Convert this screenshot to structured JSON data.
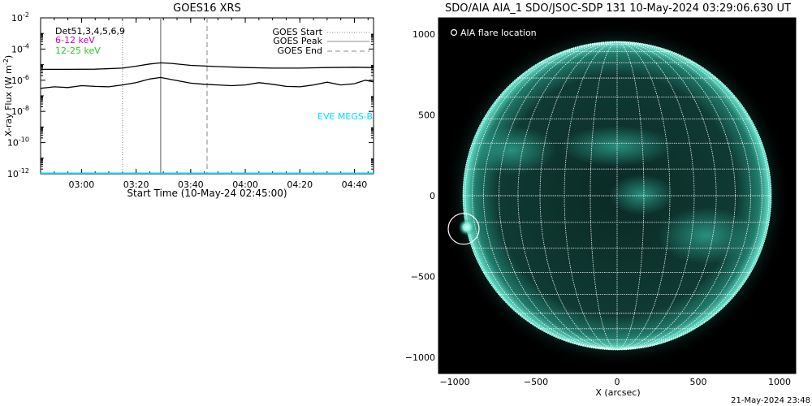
{
  "footer_timestamp": "21-May-2024 23:48",
  "chart_data": [
    {
      "type": "line",
      "title": "GOES16 XRS",
      "xlabel": "Start Time (10-May-24 02:45:00)",
      "ylabel_main": "X-ray Flux (W m",
      "ylabel_sup": "-2",
      "ylabel_close": ")",
      "yscale": "log",
      "ylim": [
        1e-12,
        0.01
      ],
      "xlim": [
        "02:45",
        "04:47"
      ],
      "y_ticks": [
        {
          "base": "10",
          "exp": "-12",
          "value": -12
        },
        {
          "base": "10",
          "exp": "-10",
          "value": -10
        },
        {
          "base": "10",
          "exp": "-8",
          "value": -8
        },
        {
          "base": "10",
          "exp": "-6",
          "value": -6
        },
        {
          "base": "10",
          "exp": "-4",
          "value": -4
        },
        {
          "base": "10",
          "exp": "-2",
          "value": -2
        }
      ],
      "x_ticks": [
        {
          "label": "03:00",
          "time": "03:00"
        },
        {
          "label": "03:20",
          "time": "03:20"
        },
        {
          "label": "03:40",
          "time": "03:40"
        },
        {
          "label": "04:00",
          "time": "04:00"
        },
        {
          "label": "04:20",
          "time": "04:20"
        },
        {
          "label": "04:40",
          "time": "04:40"
        }
      ],
      "legend_left": [
        {
          "label": "Det51,3,4,5,6,9",
          "color": "#000000"
        },
        {
          "label": "6-12 keV",
          "color": "#cc00cc"
        },
        {
          "label": "12-25 keV",
          "color": "#22cc22"
        }
      ],
      "legend_right": [
        {
          "label": "GOES Start",
          "style": "dotted",
          "time": "03:15"
        },
        {
          "label": "GOES Peak",
          "style": "solid",
          "time": "03:29"
        },
        {
          "label": "GOES End",
          "style": "dashed",
          "time": "03:46"
        }
      ],
      "eve_label": "EVE MEGS-B",
      "eve_color": "#00d8ff",
      "series": [
        {
          "name": "long",
          "color": "#000000",
          "points": [
            [
              "02:45",
              5e-06
            ],
            [
              "02:55",
              5e-06
            ],
            [
              "03:05",
              5.1e-06
            ],
            [
              "03:15",
              6e-06
            ],
            [
              "03:20",
              8e-06
            ],
            [
              "03:25",
              1.1e-05
            ],
            [
              "03:29",
              1.3e-05
            ],
            [
              "03:33",
              1.2e-05
            ],
            [
              "03:40",
              9e-06
            ],
            [
              "03:50",
              7.5e-06
            ],
            [
              "04:00",
              6.5e-06
            ],
            [
              "04:10",
              6e-06
            ],
            [
              "04:20",
              6e-06
            ],
            [
              "04:30",
              6.5e-06
            ],
            [
              "04:40",
              6.8e-06
            ],
            [
              "04:47",
              6.5e-06
            ]
          ]
        },
        {
          "name": "short",
          "color": "#000000",
          "points": [
            [
              "02:45",
              3e-07
            ],
            [
              "02:50",
              3.8e-07
            ],
            [
              "02:55",
              3.4e-07
            ],
            [
              "03:00",
              4.5e-07
            ],
            [
              "03:05",
              4e-07
            ],
            [
              "03:10",
              3.8e-07
            ],
            [
              "03:15",
              5e-07
            ],
            [
              "03:20",
              7e-07
            ],
            [
              "03:25",
              1.2e-06
            ],
            [
              "03:29",
              1.5e-06
            ],
            [
              "03:33",
              1.1e-06
            ],
            [
              "03:40",
              6.5e-07
            ],
            [
              "03:45",
              5.5e-07
            ],
            [
              "03:50",
              5e-07
            ],
            [
              "03:55",
              4.5e-07
            ],
            [
              "04:00",
              5e-07
            ],
            [
              "04:05",
              7e-07
            ],
            [
              "04:10",
              5.5e-07
            ],
            [
              "04:15",
              4e-07
            ],
            [
              "04:20",
              3.8e-07
            ],
            [
              "04:25",
              5e-07
            ],
            [
              "04:30",
              7.5e-07
            ],
            [
              "04:35",
              5e-07
            ],
            [
              "04:40",
              6e-07
            ],
            [
              "04:44",
              1e-06
            ],
            [
              "04:47",
              8e-07
            ]
          ]
        },
        {
          "name": "EVE MEGS-B",
          "color": "#00d8ff",
          "points": [
            [
              "02:45",
              1e-12
            ],
            [
              "04:47",
              1e-12
            ]
          ]
        }
      ]
    },
    {
      "type": "scatter",
      "title": "SDO/AIA AIA_1 SDO/JSOC-SDP 131 10-May-2024 03:29:06.630 UT",
      "xlabel": "X (arcsec)",
      "ylabel": "",
      "xlim": [
        -1100,
        1100
      ],
      "ylim": [
        -1100,
        1100
      ],
      "x_ticks": [
        {
          "label": "−1000",
          "value": -1000
        },
        {
          "label": "−500",
          "value": -500
        },
        {
          "label": "0",
          "value": 0
        },
        {
          "label": "500",
          "value": 500
        },
        {
          "label": "1000",
          "value": 1000
        }
      ],
      "y_ticks": [
        {
          "label": "−1000",
          "value": -1000
        },
        {
          "label": "−500",
          "value": -500
        },
        {
          "label": "0",
          "value": 0
        },
        {
          "label": "500",
          "value": 500
        },
        {
          "label": "1000",
          "value": 1000
        }
      ],
      "solar_radius": 950,
      "grid_spacing_deg": 10,
      "legend": [
        {
          "label": "AIA flare location",
          "symbol": "circle"
        }
      ],
      "flare": {
        "x": -945,
        "y": -205,
        "radius": 95
      },
      "disk_color": "#0a2b26",
      "limb_color": "#5fe8d0",
      "background_color": "#000000"
    }
  ]
}
